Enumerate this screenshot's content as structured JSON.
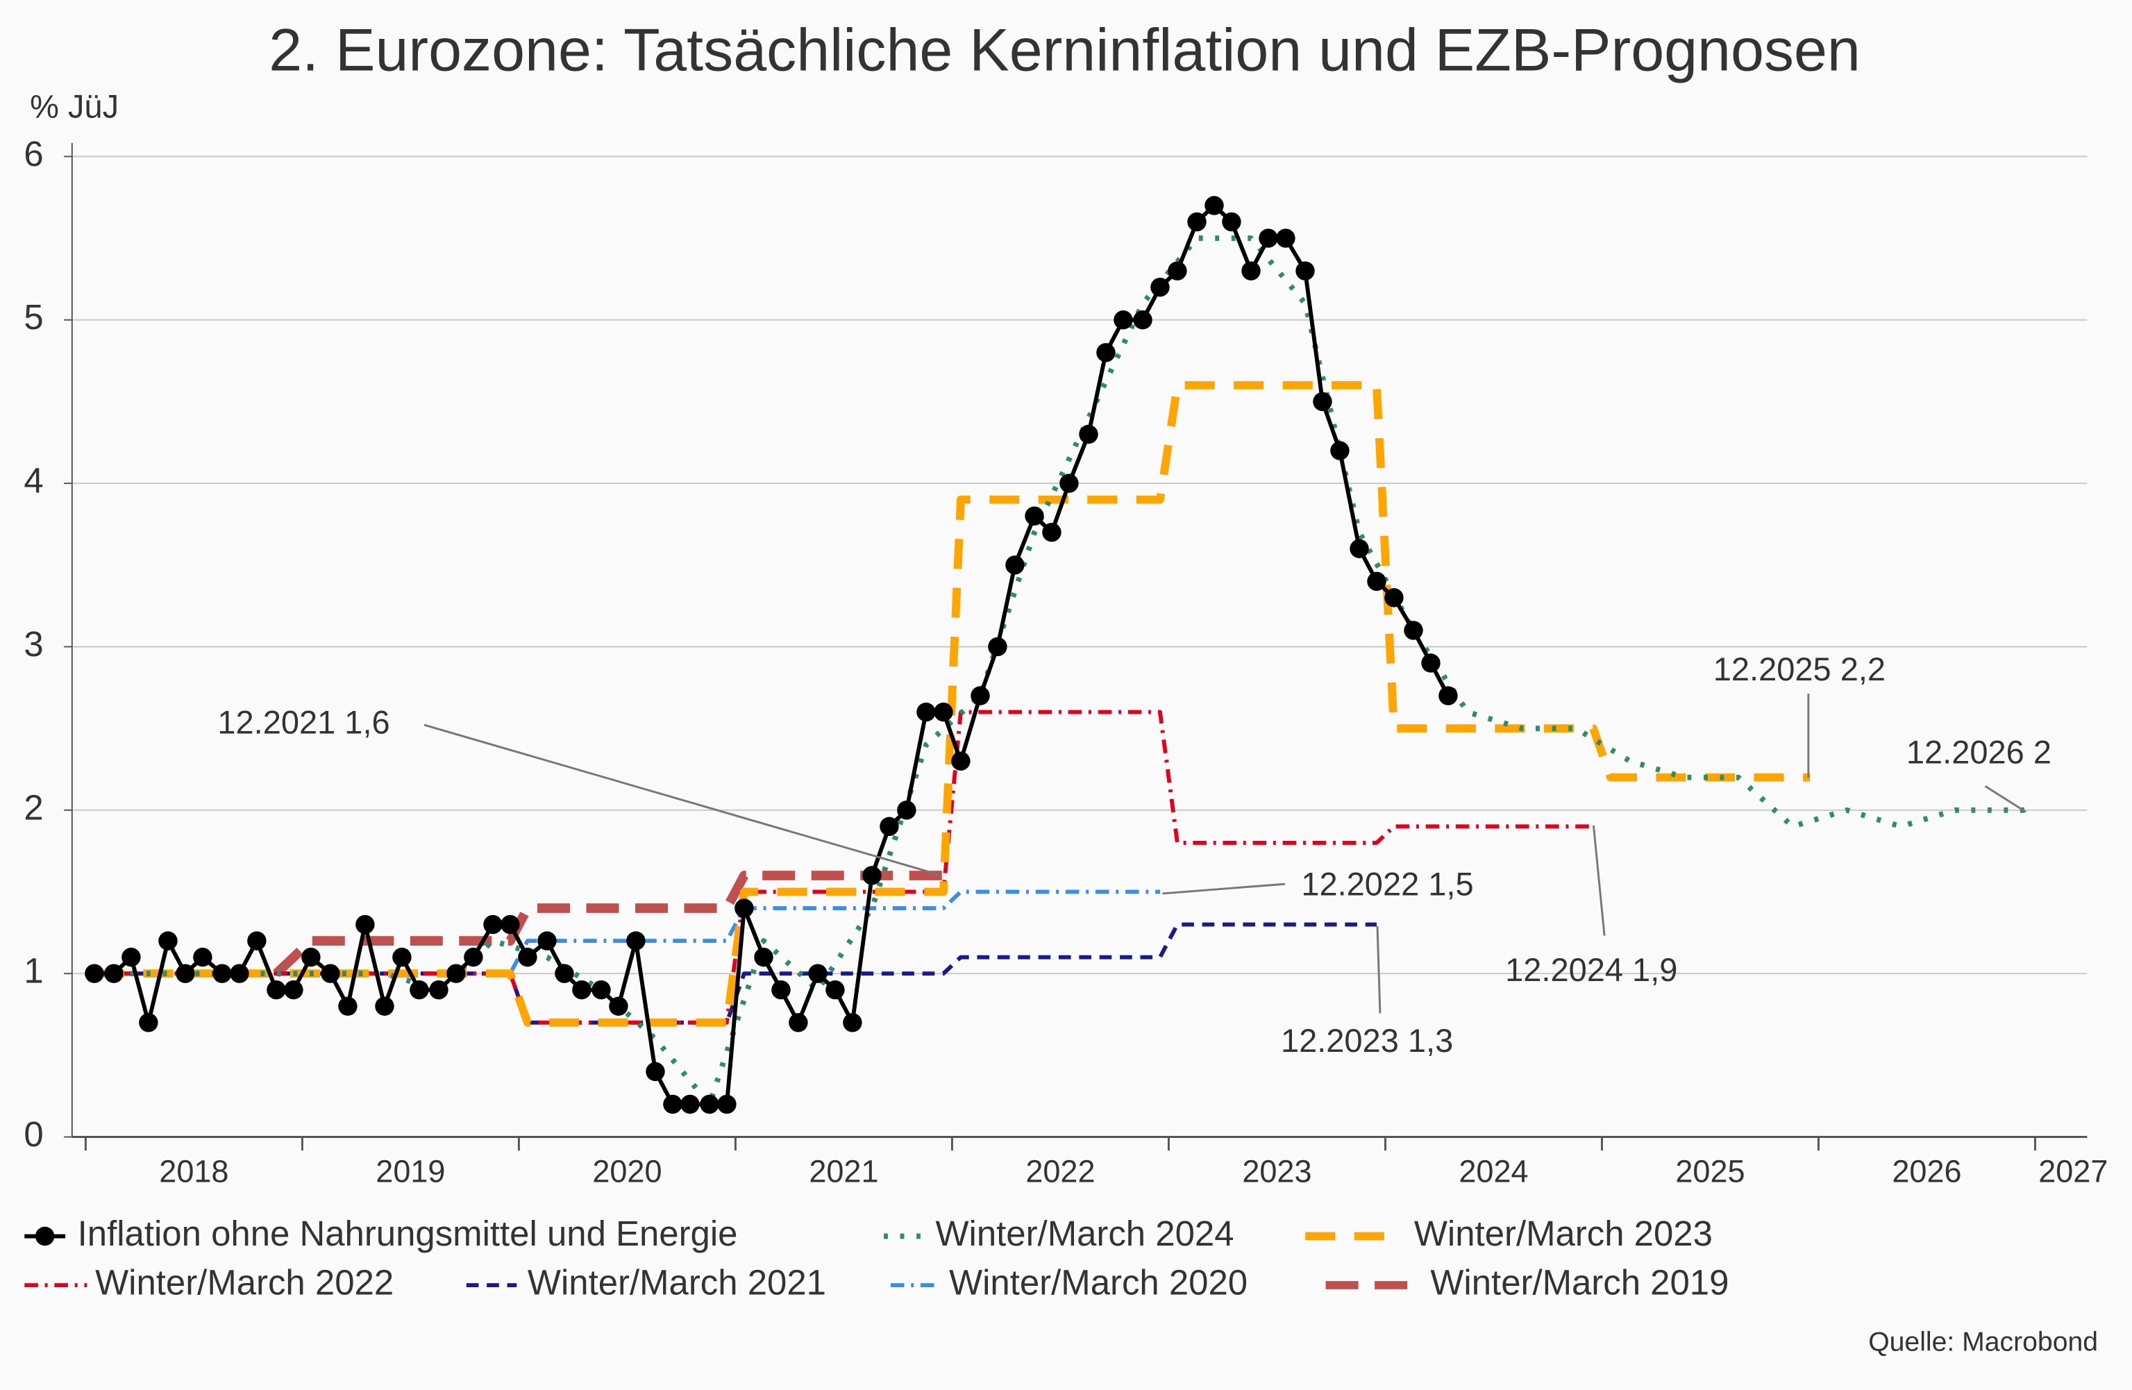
{
  "chart_data": {
    "type": "line",
    "title": "2. Eurozone: Tatsächliche Kerninflation und EZB-Prognosen",
    "ylabel": "% JüJ",
    "source": "Quelle: Macrobond",
    "xlim": [
      2018,
      2027.24
    ],
    "xticks": [
      2018,
      2019,
      2020,
      2021,
      2022,
      2023,
      2024,
      2025,
      2026,
      2027
    ],
    "ylim": [
      0,
      6
    ],
    "yticks": [
      0,
      1,
      2,
      3,
      4,
      5,
      6
    ],
    "grid": true,
    "series": [
      {
        "name": "Inflation ohne Nahrungsmittel und Energie",
        "color": "#000000",
        "style": "solid-markers",
        "x": [
          2018.04,
          2018.13,
          2018.21,
          2018.29,
          2018.38,
          2018.46,
          2018.54,
          2018.63,
          2018.71,
          2018.79,
          2018.88,
          2018.96,
          2019.04,
          2019.13,
          2019.21,
          2019.29,
          2019.38,
          2019.46,
          2019.54,
          2019.63,
          2019.71,
          2019.79,
          2019.88,
          2019.96,
          2020.04,
          2020.13,
          2020.21,
          2020.29,
          2020.38,
          2020.46,
          2020.54,
          2020.63,
          2020.71,
          2020.79,
          2020.88,
          2020.96,
          2021.04,
          2021.13,
          2021.21,
          2021.29,
          2021.38,
          2021.46,
          2021.54,
          2021.63,
          2021.71,
          2021.79,
          2021.88,
          2021.96,
          2022.04,
          2022.13,
          2022.21,
          2022.29,
          2022.38,
          2022.46,
          2022.54,
          2022.63,
          2022.71,
          2022.79,
          2022.88,
          2022.96,
          2023.04,
          2023.13,
          2023.21,
          2023.29,
          2023.38,
          2023.46,
          2023.54,
          2023.63,
          2023.71,
          2023.79,
          2023.88,
          2023.96,
          2024.04,
          2024.13,
          2024.21,
          2024.29
        ],
        "values": [
          1.0,
          1.0,
          1.1,
          0.7,
          1.2,
          1.0,
          1.1,
          1.0,
          1.0,
          1.2,
          0.9,
          0.9,
          1.1,
          1.0,
          0.8,
          1.3,
          0.8,
          1.1,
          0.9,
          0.9,
          1.0,
          1.1,
          1.3,
          1.3,
          1.1,
          1.2,
          1.0,
          0.9,
          0.9,
          0.8,
          1.2,
          0.4,
          0.2,
          0.2,
          0.2,
          0.2,
          1.4,
          1.1,
          0.9,
          0.7,
          1.0,
          0.9,
          0.7,
          1.6,
          1.9,
          2.0,
          2.6,
          2.6,
          2.3,
          2.7,
          3.0,
          3.5,
          3.8,
          3.7,
          4.0,
          4.3,
          4.8,
          5.0,
          5.0,
          5.2,
          5.3,
          5.6,
          5.7,
          5.6,
          5.3,
          5.5,
          5.5,
          5.3,
          4.5,
          4.2,
          3.6,
          3.4,
          3.3,
          3.1,
          2.9,
          2.7
        ]
      },
      {
        "name": "Winter/March 2024",
        "color": "#2e8b6e",
        "style": "dotted",
        "x": [
          2018.13,
          2018.38,
          2018.63,
          2018.88,
          2019.13,
          2019.38,
          2019.63,
          2019.88,
          2020.13,
          2020.38,
          2020.63,
          2020.88,
          2021.13,
          2021.38,
          2021.63,
          2021.88,
          2022.13,
          2022.38,
          2022.63,
          2022.88,
          2023.13,
          2023.38,
          2023.63,
          2023.88,
          2024.13,
          2024.38,
          2024.63,
          2024.88,
          2025.13,
          2025.38,
          2025.63,
          2025.88,
          2026.13,
          2026.38,
          2026.63,
          2026.96
        ],
        "values": [
          1.0,
          1.0,
          1.0,
          1.0,
          1.0,
          1.0,
          0.9,
          1.2,
          1.1,
          0.9,
          0.6,
          0.2,
          1.2,
          0.9,
          1.4,
          2.4,
          2.7,
          3.7,
          4.4,
          5.1,
          5.5,
          5.5,
          5.1,
          3.7,
          3.1,
          2.6,
          2.5,
          2.5,
          2.3,
          2.2,
          2.2,
          1.9,
          2.0,
          1.9,
          2.0,
          2.0
        ]
      },
      {
        "name": "Winter/March 2023",
        "color": "#ffa500",
        "style": "dashed-wide",
        "x": [
          2018.04,
          2019.96,
          2020.04,
          2020.96,
          2021.04,
          2021.96,
          2022.04,
          2022.96,
          2023.04,
          2023.96,
          2024.04,
          2024.96,
          2025.04,
          2025.96
        ],
        "values": [
          1.0,
          1.0,
          0.7,
          0.7,
          1.5,
          1.5,
          3.9,
          3.9,
          4.6,
          4.6,
          2.5,
          2.5,
          2.2,
          2.2
        ]
      },
      {
        "name": "Winter/March 2022",
        "color": "#e3001b",
        "style": "dashdot",
        "x": [
          2018.04,
          2019.96,
          2020.04,
          2020.96,
          2021.04,
          2021.96,
          2022.04,
          2022.96,
          2023.04,
          2023.96,
          2024.04,
          2024.96
        ],
        "values": [
          1.0,
          1.0,
          0.7,
          0.7,
          1.5,
          1.5,
          2.6,
          2.6,
          1.8,
          1.8,
          1.9,
          1.9
        ]
      },
      {
        "name": "Winter/March 2021",
        "color": "#1a1a8c",
        "style": "dashed",
        "x": [
          2018.04,
          2019.96,
          2020.04,
          2020.96,
          2021.04,
          2021.96,
          2022.04,
          2022.96,
          2023.04,
          2023.96
        ],
        "values": [
          1.0,
          1.0,
          0.7,
          0.7,
          1.0,
          1.0,
          1.1,
          1.1,
          1.3,
          1.3
        ]
      },
      {
        "name": "Winter/March 2020",
        "color": "#3a8ee6",
        "style": "dashdot",
        "x": [
          2018.04,
          2019.96,
          2020.04,
          2020.96,
          2021.04,
          2021.96,
          2022.04,
          2022.96
        ],
        "values": [
          1.0,
          1.0,
          1.2,
          1.2,
          1.4,
          1.4,
          1.5,
          1.5
        ]
      },
      {
        "name": "Winter/March 2019",
        "color": "#c0504d",
        "style": "dashed-thick",
        "x": [
          2018.88,
          2019.04,
          2019.96,
          2020.04,
          2020.96,
          2021.04,
          2021.96
        ],
        "values": [
          1.0,
          1.2,
          1.2,
          1.4,
          1.4,
          1.6,
          1.6
        ]
      }
    ],
    "annotations": [
      "12.2021 1,6",
      "12.2022 1,5",
      "12.2023 1,3",
      "12.2024 1,9",
      "12.2025 2,2",
      "12.2026 2"
    ]
  }
}
